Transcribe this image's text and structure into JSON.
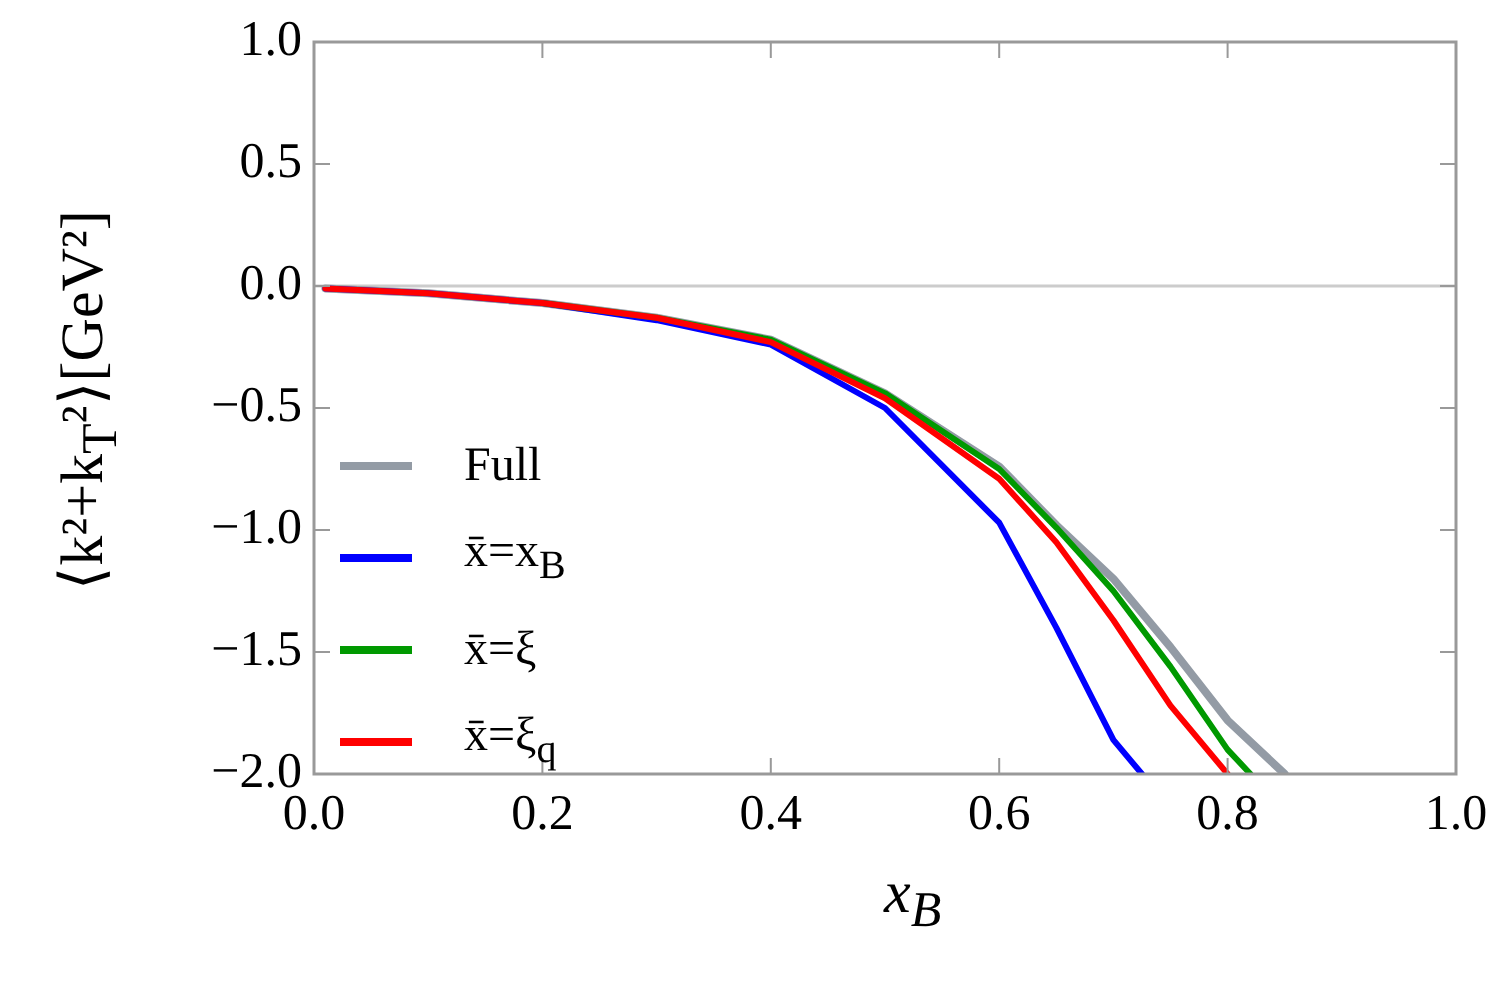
{
  "chart_data": {
    "type": "line",
    "xlabel": "x$_{B}$",
    "ylabel": "⟨k²+k$_{T}$²⟩[GeV²]",
    "xlim": [
      0,
      1
    ],
    "ylim": [
      -2,
      1
    ],
    "xticks": [
      {
        "value": 0,
        "label": "0.0"
      },
      {
        "value": 0.2,
        "label": "0.2"
      },
      {
        "value": 0.4,
        "label": "0.4"
      },
      {
        "value": 0.6,
        "label": "0.6"
      },
      {
        "value": 0.8,
        "label": "0.8"
      },
      {
        "value": 1,
        "label": "1.0"
      }
    ],
    "yticks": [
      {
        "value": -2,
        "label": "−2.0"
      },
      {
        "value": -1.5,
        "label": "−1.5"
      },
      {
        "value": -1,
        "label": "−1.0"
      },
      {
        "value": -0.5,
        "label": "−0.5"
      },
      {
        "value": 0,
        "label": "0.0"
      },
      {
        "value": 0.5,
        "label": "0.5"
      },
      {
        "value": 1,
        "label": "1.0"
      }
    ],
    "grid": false,
    "legend": "left",
    "marker": "none",
    "line_style": "solid",
    "ref_lines": [
      {
        "axis": "y",
        "value": 0,
        "color": "#cccccc"
      }
    ],
    "series": [
      {
        "name": "Full",
        "color": "#939ba5",
        "x": [
          0.01,
          0.1,
          0.2,
          0.3,
          0.4,
          0.5,
          0.6,
          0.65,
          0.7,
          0.75,
          0.8,
          0.85
        ],
        "values": [
          -0.01,
          -0.03,
          -0.07,
          -0.13,
          -0.22,
          -0.44,
          -0.74,
          -0.98,
          -1.2,
          -1.48,
          -1.78,
          -2
        ]
      },
      {
        "name": "x̄=x$_{B}$",
        "color": "#0000ff",
        "x": [
          0.01,
          0.1,
          0.2,
          0.3,
          0.4,
          0.5,
          0.6,
          0.65,
          0.7,
          0.725
        ],
        "values": [
          -0.01,
          -0.03,
          -0.07,
          -0.14,
          -0.24,
          -0.5,
          -0.97,
          -1.4,
          -1.86,
          -2
        ]
      },
      {
        "name": "x̄=ξ",
        "color": "#009900",
        "x": [
          0.2,
          0.3,
          0.4,
          0.5,
          0.6,
          0.65,
          0.7,
          0.75,
          0.8,
          0.82
        ],
        "values": [
          -0.07,
          -0.13,
          -0.22,
          -0.44,
          -0.75,
          -0.99,
          -1.25,
          -1.56,
          -1.9,
          -2
        ]
      },
      {
        "name": "x̄=ξ$_{q}$",
        "color": "#ff0000",
        "x": [
          0.01,
          0.1,
          0.2,
          0.3,
          0.4,
          0.5,
          0.6,
          0.65,
          0.7,
          0.75,
          0.8
        ],
        "values": [
          -0.01,
          -0.03,
          -0.07,
          -0.13,
          -0.23,
          -0.46,
          -0.79,
          -1.05,
          -1.37,
          -1.72,
          -2
        ]
      }
    ]
  }
}
